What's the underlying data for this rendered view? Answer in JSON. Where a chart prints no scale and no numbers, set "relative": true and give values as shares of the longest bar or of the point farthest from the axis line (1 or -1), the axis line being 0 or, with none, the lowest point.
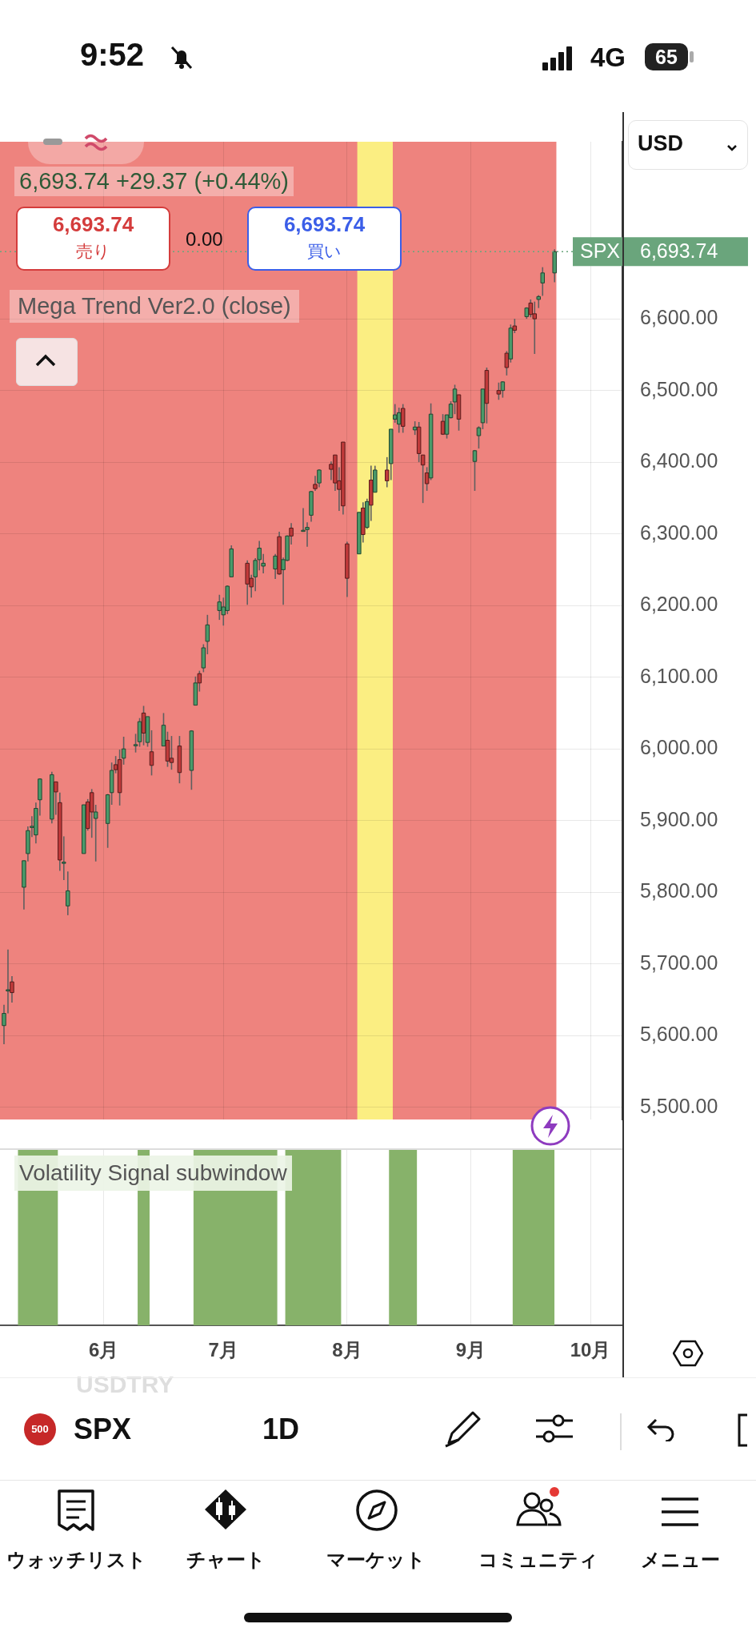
{
  "chart_data": [
    {
      "type": "candlestick",
      "x": [
        "--05-07",
        "--05-08",
        "--05-09",
        "--05-12",
        "--05-13",
        "--05-14",
        "--05-15",
        "--05-16",
        "--05-19",
        "--05-20",
        "--05-21",
        "--05-22",
        "--05-23",
        "--05-27",
        "--05-28",
        "--05-29",
        "--05-30",
        "--06-02",
        "--06-03",
        "--06-04",
        "--06-05",
        "--06-06",
        "--06-09",
        "--06-10",
        "--06-11",
        "--06-12",
        "--06-13",
        "--06-16",
        "--06-17",
        "--06-18",
        "--06-20",
        "--06-23",
        "--06-24",
        "--06-25",
        "--06-26",
        "--06-27",
        "--06-30",
        "--07-01",
        "--07-02",
        "--07-03",
        "--07-07",
        "--07-08",
        "--07-09",
        "--07-10",
        "--07-11",
        "--07-14",
        "--07-15",
        "--07-16",
        "--07-17",
        "--07-18",
        "--07-21",
        "--07-22",
        "--07-23",
        "--07-24",
        "--07-25",
        "--07-28",
        "--07-29",
        "--07-30",
        "--07-31",
        "--08-01",
        "--08-04",
        "--08-05",
        "--08-06",
        "--08-07",
        "--08-08",
        "--08-11",
        "--08-12",
        "--08-13",
        "--08-14",
        "--08-15",
        "--08-18",
        "--08-19",
        "--08-20",
        "--08-21",
        "--08-22",
        "--08-25",
        "--08-26",
        "--08-27",
        "--08-28",
        "--08-29",
        "--09-02",
        "--09-03",
        "--09-04",
        "--09-05",
        "--09-08",
        "--09-09",
        "--09-10",
        "--09-11",
        "--09-12",
        "--09-15",
        "--09-16",
        "--09-17",
        "--09-18",
        "--09-19",
        "--09-22"
      ],
      "ohlc": [
        [
          5614,
          5643,
          5588,
          5631
        ],
        [
          5663,
          5720,
          5631,
          5664
        ],
        [
          5675,
          5683,
          5646,
          5660
        ],
        [
          5807,
          5844,
          5776,
          5844
        ],
        [
          5854,
          5892,
          5843,
          5886
        ],
        [
          5891,
          5906,
          5877,
          5892
        ],
        [
          5880,
          5925,
          5868,
          5917
        ],
        [
          5929,
          5959,
          5907,
          5958
        ],
        [
          5902,
          5968,
          5896,
          5964
        ],
        [
          5954,
          5954,
          5908,
          5940
        ],
        [
          5925,
          5939,
          5830,
          5845
        ],
        [
          5842,
          5878,
          5817,
          5842
        ],
        [
          5781,
          5829,
          5768,
          5802
        ],
        [
          5854,
          5922,
          5854,
          5922
        ],
        [
          5926,
          5930,
          5886,
          5889
        ],
        [
          5939,
          5944,
          5876,
          5912
        ],
        [
          5903,
          5922,
          5843,
          5912
        ],
        [
          5896,
          5937,
          5862,
          5936
        ],
        [
          5939,
          5981,
          5922,
          5970
        ],
        [
          5978,
          5990,
          5966,
          5971
        ],
        [
          5985,
          5999,
          5921,
          5939
        ],
        [
          5987,
          6017,
          5978,
          6000
        ],
        [
          6005,
          6021,
          5995,
          6006
        ],
        [
          6010,
          6043,
          6003,
          6038
        ],
        [
          6050,
          6060,
          6005,
          6022
        ],
        [
          6009,
          6045,
          6003,
          6045
        ],
        [
          5996,
          6026,
          5963,
          5977
        ],
        [
          6004,
          6050,
          6004,
          6033
        ],
        [
          6012,
          6024,
          5975,
          5983
        ],
        [
          5987,
          6018,
          5971,
          5981
        ],
        [
          6004,
          6018,
          5952,
          5967
        ],
        [
          5970,
          6026,
          5943,
          6025
        ],
        [
          6061,
          6101,
          6061,
          6092
        ],
        [
          6105,
          6109,
          6080,
          6092
        ],
        [
          6113,
          6146,
          6107,
          6141
        ],
        [
          6150,
          6187,
          6132,
          6173
        ],
        [
          6193,
          6215,
          6180,
          6205
        ],
        [
          6187,
          6211,
          6172,
          6198
        ],
        [
          6193,
          6228,
          6188,
          6227
        ],
        [
          6240,
          6284,
          6240,
          6279
        ],
        [
          6259,
          6263,
          6201,
          6230
        ],
        [
          6238,
          6243,
          6211,
          6226
        ],
        [
          6240,
          6266,
          6220,
          6263
        ],
        [
          6264,
          6290,
          6249,
          6280
        ],
        [
          6255,
          6272,
          6245,
          6259
        ],
        [
          6251,
          6272,
          6237,
          6269
        ],
        [
          6296,
          6303,
          6243,
          6244
        ],
        [
          6250,
          6267,
          6201,
          6264
        ],
        [
          6263,
          6298,
          6262,
          6297
        ],
        [
          6308,
          6315,
          6285,
          6297
        ],
        [
          6304,
          6336,
          6303,
          6305
        ],
        [
          6306,
          6316,
          6282,
          6309
        ],
        [
          6326,
          6360,
          6317,
          6359
        ],
        [
          6369,
          6381,
          6360,
          6363
        ],
        [
          6371,
          6390,
          6365,
          6389
        ],
        [
          6397,
          6401,
          6375,
          6390
        ],
        [
          6410,
          6410,
          6360,
          6371
        ],
        [
          6374,
          6393,
          6332,
          6362
        ],
        [
          6428,
          6428,
          6327,
          6339
        ],
        [
          6286,
          6289,
          6212,
          6238
        ],
        [
          6272,
          6330,
          6272,
          6330
        ],
        [
          6336,
          6344,
          6288,
          6299
        ],
        [
          6309,
          6349,
          6307,
          6345
        ],
        [
          6375,
          6395,
          6318,
          6340
        ],
        [
          6358,
          6395,
          6358,
          6389
        ],
        [
          6389,
          6407,
          6365,
          6374
        ],
        [
          6398,
          6446,
          6375,
          6446
        ],
        [
          6460,
          6481,
          6455,
          6466
        ],
        [
          6453,
          6476,
          6441,
          6469
        ],
        [
          6475,
          6481,
          6441,
          6450
        ],
        [
          6445,
          6457,
          6438,
          6449
        ],
        [
          6449,
          6456,
          6400,
          6412
        ],
        [
          6410,
          6410,
          6343,
          6396
        ],
        [
          6385,
          6393,
          6360,
          6370
        ],
        [
          6378,
          6482,
          6375,
          6467
        ],
        [
          6457,
          6467,
          6438,
          6439
        ],
        [
          6439,
          6466,
          6433,
          6466
        ],
        [
          6462,
          6485,
          6461,
          6481
        ],
        [
          6484,
          6508,
          6467,
          6502
        ],
        [
          6494,
          6494,
          6444,
          6460
        ],
        [
          6401,
          6417,
          6360,
          6416
        ],
        [
          6437,
          6450,
          6419,
          6448
        ],
        [
          6455,
          6502,
          6446,
          6502
        ],
        [
          6528,
          6532,
          6454,
          6482
        ],
        [
          6500,
          6511,
          6487,
          6495
        ],
        [
          6500,
          6513,
          6490,
          6512
        ],
        [
          6552,
          6555,
          6521,
          6532
        ],
        [
          6544,
          6592,
          6539,
          6587
        ],
        [
          6590,
          6600,
          6580,
          6584
        ],
        [
          6603,
          6616,
          6600,
          6615
        ],
        [
          6622,
          6627,
          6602,
          6606
        ],
        [
          6607,
          6624,
          6551,
          6600
        ],
        [
          6627,
          6633,
          6615,
          6631
        ],
        [
          6650,
          6672,
          6632,
          6664
        ],
        [
          6664,
          6697,
          6651,
          6693.74
        ]
      ],
      "colors": [
        "#4a9a6a",
        "#4a9a6a",
        "#c03a3a",
        "#4a9a6a",
        "#4a9a6a",
        "#4a9a6a",
        "#4a9a6a",
        "#4a9a6a",
        "#4a9a6a",
        "#c03a3a",
        "#c03a3a",
        "#4a9a6a",
        "#4a9a6a",
        "#4a9a6a",
        "#c03a3a",
        "#c03a3a",
        "#4a9a6a",
        "#4a9a6a",
        "#4a9a6a",
        "#c03a3a",
        "#c03a3a",
        "#4a9a6a",
        "#4a9a6a",
        "#4a9a6a",
        "#c03a3a",
        "#4a9a6a",
        "#c03a3a",
        "#4a9a6a",
        "#c03a3a",
        "#c03a3a",
        "#c03a3a",
        "#4a9a6a",
        "#4a9a6a",
        "#c03a3a",
        "#4a9a6a",
        "#4a9a6a",
        "#4a9a6a",
        "#4a9a6a",
        "#4a9a6a",
        "#4a9a6a",
        "#c03a3a",
        "#c03a3a",
        "#4a9a6a",
        "#4a9a6a",
        "#4a9a6a",
        "#4a9a6a",
        "#c03a3a",
        "#4a9a6a",
        "#4a9a6a",
        "#c03a3a",
        "#4a9a6a",
        "#4a9a6a",
        "#4a9a6a",
        "#c03a3a",
        "#4a9a6a",
        "#c03a3a",
        "#c03a3a",
        "#c03a3a",
        "#c03a3a",
        "#c03a3a",
        "#4a9a6a",
        "#c03a3a",
        "#4a9a6a",
        "#c03a3a",
        "#4a9a6a",
        "#c03a3a",
        "#4a9a6a",
        "#4a9a6a",
        "#4a9a6a",
        "#c03a3a",
        "#4a9a6a",
        "#c03a3a",
        "#c03a3a",
        "#c03a3a",
        "#4a9a6a",
        "#c03a3a",
        "#4a9a6a",
        "#4a9a6a",
        "#4a9a6a",
        "#c03a3a",
        "#4a9a6a",
        "#4a9a6a",
        "#4a9a6a",
        "#c03a3a",
        "#c03a3a",
        "#4a9a6a",
        "#c03a3a",
        "#4a9a6a",
        "#c03a3a",
        "#4a9a6a",
        "#c03a3a",
        "#c03a3a",
        "#4a9a6a",
        "#4a9a6a",
        "#4a9a6a"
      ],
      "ylim": [
        5483,
        6847
      ],
      "yticks": [
        {
          "value": 5500,
          "label": "5,500.00"
        },
        {
          "value": 5600,
          "label": "5,600.00"
        },
        {
          "value": 5700,
          "label": "5,700.00"
        },
        {
          "value": 5800,
          "label": "5,800.00"
        },
        {
          "value": 5900,
          "label": "5,900.00"
        },
        {
          "value": 6000,
          "label": "6,000.00"
        },
        {
          "value": 6100,
          "label": "6,100.00"
        },
        {
          "value": 6200,
          "label": "6,200.00"
        },
        {
          "value": 6300,
          "label": "6,300.00"
        },
        {
          "value": 6400,
          "label": "6,400.00"
        },
        {
          "value": 6500,
          "label": "6,500.00"
        },
        {
          "value": 6600,
          "label": "6,600.00"
        }
      ],
      "xlim": [
        "--05-06",
        "--10-09"
      ],
      "xticks": [
        {
          "value": "--06-01",
          "label": null
        },
        {
          "value": "--07-01",
          "label": null
        },
        {
          "value": "--08-01",
          "label": null
        },
        {
          "value": "--09-01",
          "label": null
        },
        {
          "value": "--10-01",
          "label": null
        }
      ],
      "grid": true,
      "tick_labels": "y",
      "bands": [
        {
          "axis": "x",
          "from": "--05-06",
          "to": "--09-22",
          "color": "#ee837e"
        },
        {
          "axis": "x",
          "from": "--08-04",
          "to": "--08-12",
          "color": "#fbee82"
        }
      ],
      "ref_lines": [
        {
          "axis": "y",
          "value": 6693.74,
          "label": "SPX",
          "color": "#6aa57c",
          "line_style": "dotted"
        }
      ],
      "annotations": [
        "9:52",
        "4G",
        "65",
        "USD",
        "6,693.74 +29.37 (+0.44%)",
        "6,693.74",
        "売り",
        "0.00",
        "6,693.74",
        "買い",
        "Mega Trend Ver2.0 (close)",
        "USDTRY",
        "500",
        "SPX",
        "1D",
        "ウォッチリスト",
        "チャート",
        "マーケット",
        "コミュニティ",
        "メニュー"
      ]
    },
    {
      "type": "area",
      "title": "Volatility Signal subwindow",
      "x": [
        "--05-07",
        "--05-08",
        "--05-09",
        "--05-12",
        "--05-13",
        "--05-14",
        "--05-15",
        "--05-16",
        "--05-19",
        "--05-20",
        "--05-21",
        "--05-22",
        "--05-23",
        "--05-27",
        "--05-28",
        "--05-29",
        "--05-30",
        "--06-02",
        "--06-03",
        "--06-04",
        "--06-05",
        "--06-06",
        "--06-09",
        "--06-10",
        "--06-11",
        "--06-12",
        "--06-13",
        "--06-16",
        "--06-17",
        "--06-18",
        "--06-20",
        "--06-23",
        "--06-24",
        "--06-25",
        "--06-26",
        "--06-27",
        "--06-30",
        "--07-01",
        "--07-02",
        "--07-03",
        "--07-07",
        "--07-08",
        "--07-09",
        "--07-10",
        "--07-11",
        "--07-14",
        "--07-15",
        "--07-16",
        "--07-17",
        "--07-18",
        "--07-21",
        "--07-22",
        "--07-23",
        "--07-24",
        "--07-25",
        "--07-28",
        "--07-29",
        "--07-30",
        "--07-31",
        "--08-01",
        "--08-04",
        "--08-05",
        "--08-06",
        "--08-07",
        "--08-08",
        "--08-11",
        "--08-12",
        "--08-13",
        "--08-14",
        "--08-15",
        "--08-18",
        "--08-19",
        "--08-20",
        "--08-21",
        "--08-22",
        "--08-25",
        "--08-26",
        "--08-27",
        "--08-28",
        "--08-29",
        "--09-02",
        "--09-03",
        "--09-04",
        "--09-05",
        "--09-08",
        "--09-09",
        "--09-10",
        "--09-11",
        "--09-12",
        "--09-15",
        "--09-16",
        "--09-17",
        "--09-18",
        "--09-19",
        "--09-22"
      ],
      "values": [
        0,
        0,
        0,
        1,
        1,
        1,
        1,
        1,
        1,
        1,
        0,
        0,
        0,
        0,
        0,
        0,
        0,
        0,
        0,
        0,
        0,
        0,
        0,
        1,
        1,
        1,
        0,
        0,
        0,
        0,
        0,
        0,
        1,
        1,
        1,
        1,
        1,
        1,
        1,
        1,
        1,
        1,
        1,
        1,
        1,
        1,
        0,
        0,
        1,
        1,
        1,
        1,
        1,
        1,
        1,
        1,
        1,
        1,
        0,
        0,
        0,
        0,
        0,
        0,
        0,
        0,
        1,
        1,
        1,
        1,
        1,
        0,
        0,
        0,
        0,
        0,
        0,
        0,
        0,
        0,
        0,
        0,
        0,
        0,
        0,
        0,
        0,
        0,
        1,
        1,
        1,
        1,
        1,
        1,
        1
      ],
      "color": "#87b26a",
      "relative": true,
      "xlim": [
        "--05-06",
        "--10-09"
      ],
      "xticks": [
        {
          "value": "--06-01",
          "label": "6月"
        },
        {
          "value": "--07-01",
          "label": "7月"
        },
        {
          "value": "--08-01",
          "label": "8月"
        },
        {
          "value": "--09-01",
          "label": "9月"
        },
        {
          "value": "--10-01",
          "label": "10月"
        }
      ],
      "grid": "x",
      "tick_labels": "x"
    }
  ]
}
